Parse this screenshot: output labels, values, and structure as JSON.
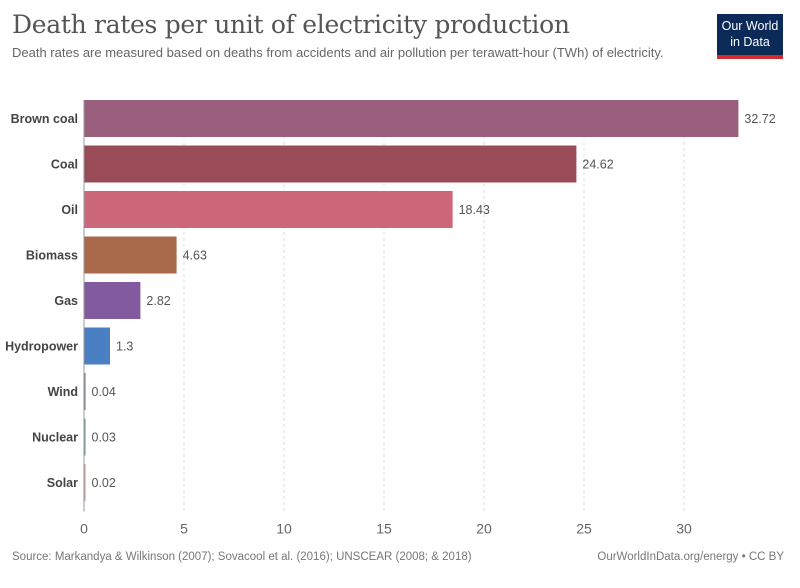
{
  "header": {
    "title": "Death rates per unit of electricity production",
    "subtitle": "Death rates are measured based on deaths from accidents and air pollution per terawatt-hour (TWh) of electricity.",
    "logo_line1": "Our World",
    "logo_line2": "in Data"
  },
  "footer": {
    "source": "Source: Markandya & Wilkinson (2007); Sovacool et al. (2016); UNSCEAR (2008; & 2018)",
    "link": "OurWorldInData.org/energy • CC BY"
  },
  "colors": {
    "logo_bg": "#0b2a57",
    "logo_stripe": "#cf2d2d"
  },
  "chart_data": {
    "type": "bar",
    "orientation": "horizontal",
    "title": "Death rates per unit of electricity production",
    "xlabel": "",
    "ylabel": "",
    "xlim": [
      0,
      33
    ],
    "xticks": [
      0,
      5,
      10,
      15,
      20,
      25,
      30
    ],
    "grid": "vertical dashed",
    "categories": [
      "Brown coal",
      "Coal",
      "Oil",
      "Biomass",
      "Gas",
      "Hydropower",
      "Wind",
      "Nuclear",
      "Solar"
    ],
    "values": [
      32.72,
      24.62,
      18.43,
      4.63,
      2.82,
      1.3,
      0.04,
      0.03,
      0.02
    ],
    "value_labels": [
      "32.72",
      "24.62",
      "18.43",
      "4.63",
      "2.82",
      "1.3",
      "0.04",
      "0.03",
      "0.02"
    ],
    "bar_colors": [
      "#9a5f7c",
      "#994b57",
      "#cb6778",
      "#a86a4a",
      "#825a9e",
      "#4a7fc4",
      "#6b7a8f",
      "#6a9b9a",
      "#c89a9a"
    ]
  }
}
